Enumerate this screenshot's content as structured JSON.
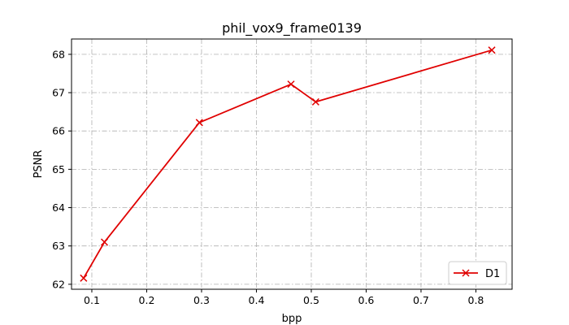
{
  "chart_data": {
    "type": "line",
    "title": "phil_vox9_frame0139",
    "xlabel": "bpp",
    "ylabel": "PSNR",
    "xlim": [
      0.063,
      0.866
    ],
    "ylim": [
      61.87,
      68.4
    ],
    "xticks": [
      0.1,
      0.2,
      0.3,
      0.4,
      0.5,
      0.6,
      0.7,
      0.8
    ],
    "xtick_labels": [
      "0.1",
      "0.2",
      "0.3",
      "0.4",
      "0.5",
      "0.6",
      "0.7",
      "0.8"
    ],
    "yticks": [
      62,
      63,
      64,
      65,
      66,
      67,
      68
    ],
    "ytick_labels": [
      "62",
      "63",
      "64",
      "65",
      "66",
      "67",
      "68"
    ],
    "grid": true,
    "legend_position": "lower-right",
    "series": [
      {
        "name": "D1",
        "color": "#e00000",
        "marker": "x",
        "x": [
          0.085,
          0.123,
          0.296,
          0.463,
          0.508,
          0.829
        ],
        "y": [
          62.16,
          63.1,
          66.22,
          67.22,
          66.76,
          68.11
        ]
      }
    ]
  }
}
